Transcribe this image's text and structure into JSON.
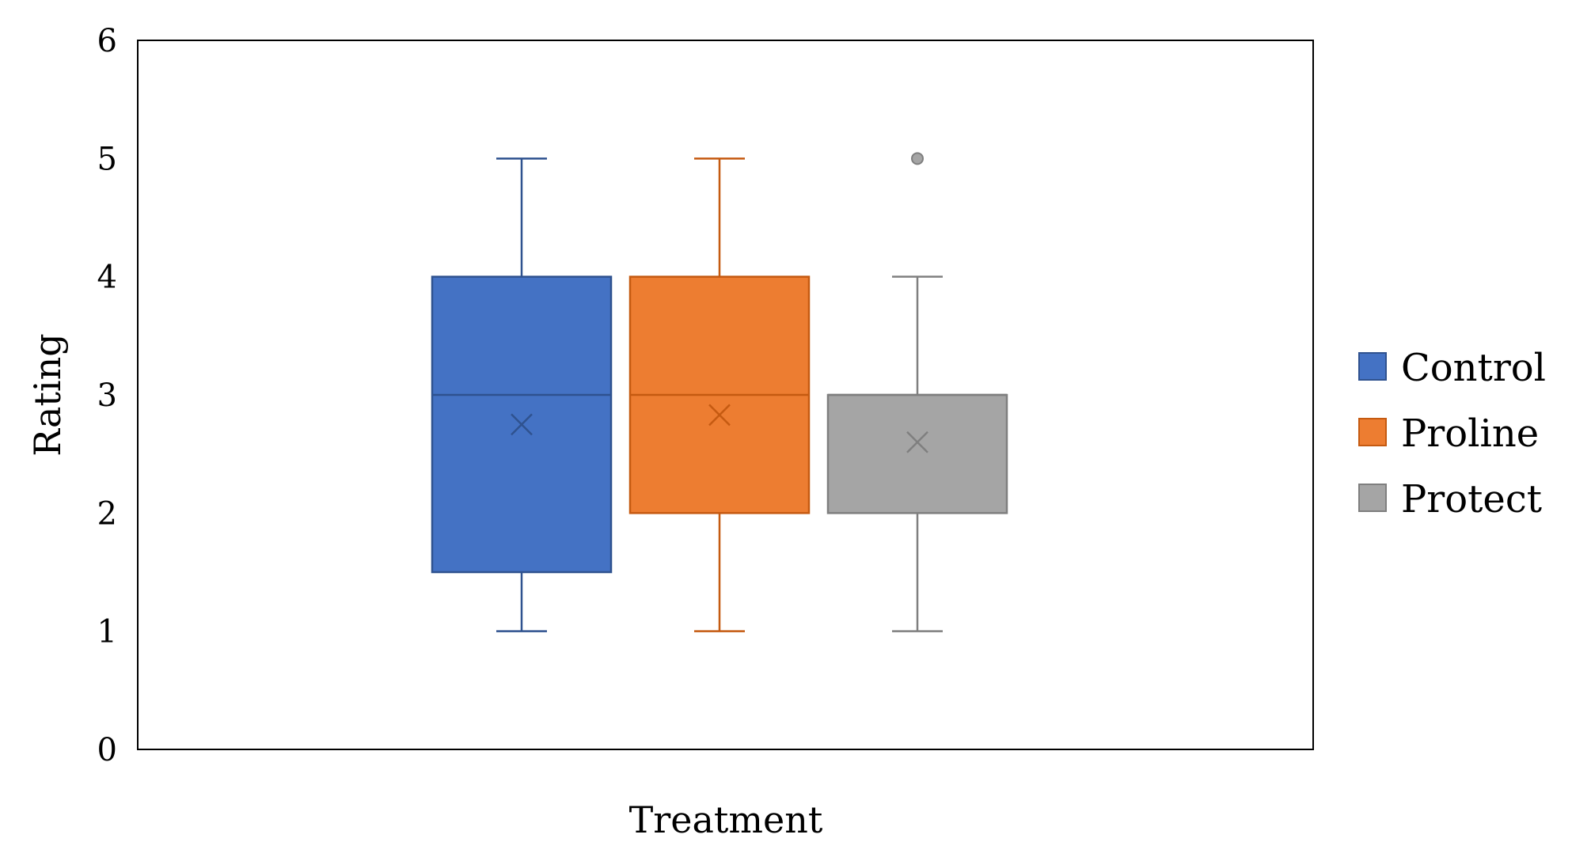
{
  "chart_data": {
    "type": "box",
    "title": "",
    "xlabel": "Treatment",
    "ylabel": "Rating",
    "ylim": [
      0,
      6
    ],
    "y_ticks": [
      "0",
      "1",
      "2",
      "3",
      "4",
      "5",
      "6"
    ],
    "grid": false,
    "legend_position": "right",
    "series": [
      {
        "name": "Control",
        "color": "#4472C4",
        "edge_color": "#2F528F",
        "min": 1,
        "q1": 1.5,
        "median": 3,
        "q3": 4,
        "max": 5,
        "mean": 2.75,
        "outliers": []
      },
      {
        "name": "Proline",
        "color": "#ED7D31",
        "edge_color": "#C55A11",
        "min": 1,
        "q1": 2,
        "median": 3,
        "q3": 4,
        "max": 5,
        "mean": 2.83,
        "outliers": []
      },
      {
        "name": "Protect",
        "color": "#A5A5A5",
        "edge_color": "#7F7F7F",
        "min": 1,
        "q1": 2,
        "median": 3,
        "q3": 3,
        "max": 4,
        "mean": 2.6,
        "outliers": [
          5
        ]
      }
    ]
  }
}
